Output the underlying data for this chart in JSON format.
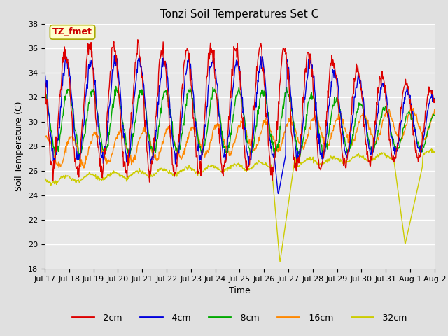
{
  "title": "Tonzi Soil Temperatures Set C",
  "xlabel": "Time",
  "ylabel": "Soil Temperature (C)",
  "ylim": [
    18,
    38
  ],
  "yticks": [
    18,
    20,
    22,
    24,
    26,
    28,
    30,
    32,
    34,
    36,
    38
  ],
  "legend_labels": [
    "-2cm",
    "-4cm",
    "-8cm",
    "-16cm",
    "-32cm"
  ],
  "legend_colors": [
    "#dd0000",
    "#0000dd",
    "#00aa00",
    "#ff8800",
    "#cccc00"
  ],
  "annotation_text": "TZ_fmet",
  "annotation_color": "#cc0000",
  "annotation_bg": "#ffffcc",
  "annotation_edge": "#aaaa00",
  "fig_facecolor": "#e0e0e0",
  "plot_facecolor": "#e8e8e8",
  "grid_color": "#ffffff",
  "title_fontsize": 11,
  "axis_fontsize": 9,
  "tick_fontsize": 8
}
